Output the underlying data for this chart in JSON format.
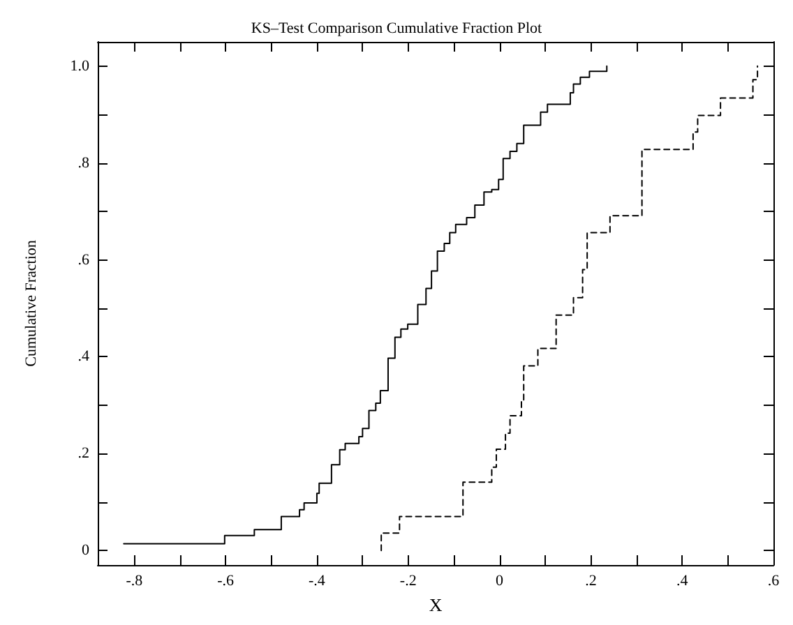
{
  "chart_data": {
    "type": "step",
    "title": "KS–Test Comparison Cumulative Fraction Plot",
    "xlabel": "X",
    "ylabel": "Cumulative Fraction",
    "xlim": [
      -0.88,
      0.6
    ],
    "ylim": [
      -0.03,
      1.05
    ],
    "xticks": [
      {
        "value": -0.8,
        "label": "-.8"
      },
      {
        "value": -0.7,
        "label": null
      },
      {
        "value": -0.6,
        "label": "-.6"
      },
      {
        "value": -0.5,
        "label": null
      },
      {
        "value": -0.4,
        "label": "-.4"
      },
      {
        "value": -0.3,
        "label": null
      },
      {
        "value": -0.2,
        "label": "-.2"
      },
      {
        "value": -0.1,
        "label": null
      },
      0,
      {
        "value": 0.1,
        "label": null
      },
      {
        "value": 0.2,
        "label": ".2"
      },
      {
        "value": 0.3,
        "label": null
      },
      {
        "value": 0.4,
        "label": ".4"
      },
      {
        "value": 0.5,
        "label": null
      },
      {
        "value": 0.6,
        "label": ".6"
      }
    ],
    "yticks": [
      0,
      {
        "value": 0.1,
        "label": null
      },
      {
        "value": 0.2,
        "label": ".2"
      },
      {
        "value": 0.3,
        "label": null
      },
      {
        "value": 0.4,
        "label": ".4"
      },
      {
        "value": 0.5,
        "label": null
      },
      {
        "value": 0.6,
        "label": ".6"
      },
      {
        "value": 0.7,
        "label": null
      },
      {
        "value": 0.8,
        "label": ".8"
      },
      {
        "value": 0.9,
        "label": null
      },
      {
        "value": 1.0,
        "label": "1.0"
      }
    ],
    "grid": false,
    "marker": "none",
    "series": [
      {
        "color": "#000000",
        "line_style": "solid",
        "x": [
          -0.823,
          -0.602,
          -0.537,
          -0.478,
          -0.438,
          -0.428,
          -0.4,
          -0.395,
          -0.368,
          -0.35,
          -0.338,
          -0.308,
          -0.3,
          -0.286,
          -0.271,
          -0.261,
          -0.244,
          -0.229,
          -0.216,
          -0.201,
          -0.179,
          -0.161,
          -0.149,
          -0.136,
          -0.121,
          -0.109,
          -0.096,
          -0.072,
          -0.054,
          -0.034,
          -0.017,
          -0.002,
          0.008,
          0.023,
          0.038,
          0.053,
          0.09,
          0.105,
          0.155,
          0.162,
          0.177,
          0.197,
          0.235
        ],
        "values": [
          0.014,
          0.031,
          0.043,
          0.07,
          0.084,
          0.098,
          0.118,
          0.139,
          0.177,
          0.208,
          0.221,
          0.235,
          0.252,
          0.289,
          0.304,
          0.33,
          0.397,
          0.44,
          0.457,
          0.467,
          0.508,
          0.541,
          0.577,
          0.618,
          0.634,
          0.656,
          0.673,
          0.687,
          0.713,
          0.74,
          0.745,
          0.766,
          0.809,
          0.824,
          0.84,
          0.878,
          0.905,
          0.921,
          0.945,
          0.963,
          0.977,
          0.989,
          1.0
        ]
      },
      {
        "color": "#000000",
        "line_style": "dashed",
        "x": [
          -0.259,
          -0.259,
          -0.219,
          -0.08,
          -0.017,
          -0.007,
          0.013,
          0.023,
          0.048,
          0.053,
          0.084,
          0.124,
          0.162,
          0.182,
          0.192,
          0.242,
          0.312,
          0.424,
          0.434,
          0.484,
          0.555,
          0.565
        ],
        "values": [
          0,
          0.036,
          0.07,
          0.141,
          0.172,
          0.209,
          0.242,
          0.278,
          0.311,
          0.381,
          0.417,
          0.486,
          0.522,
          0.58,
          0.656,
          0.691,
          0.828,
          0.864,
          0.898,
          0.934,
          0.972,
          1.0
        ]
      }
    ]
  }
}
